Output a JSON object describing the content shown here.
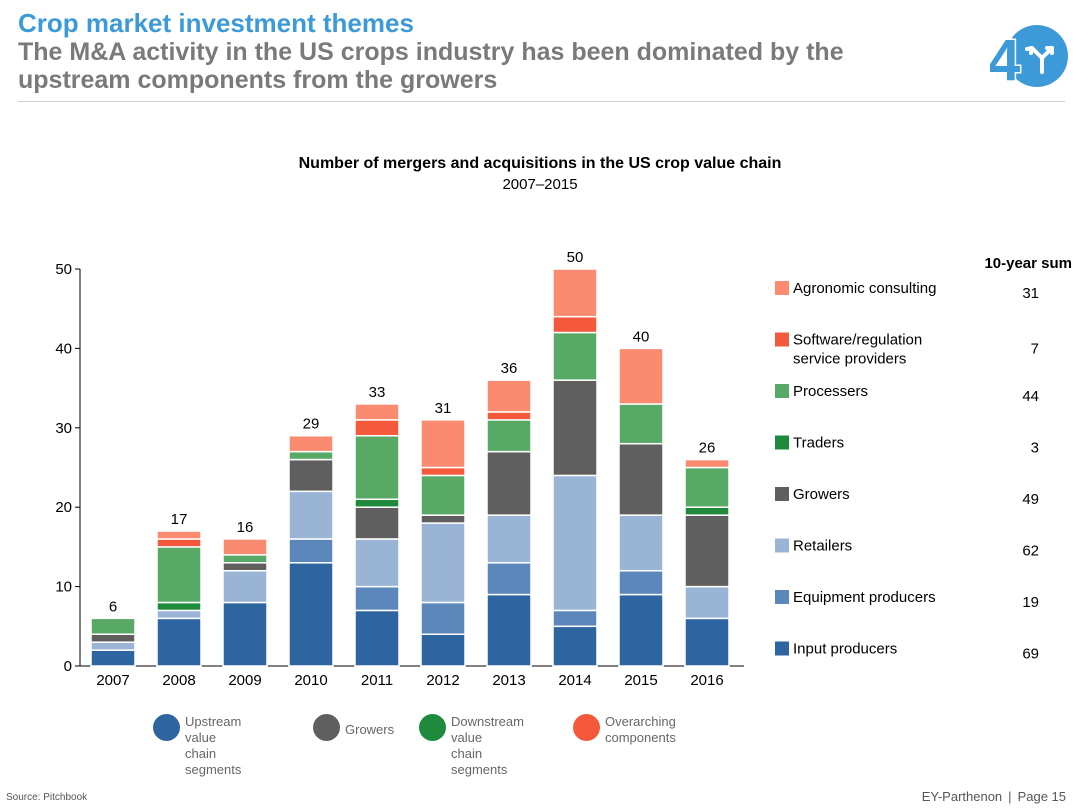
{
  "header": {
    "title": "Crop market investment themes",
    "subtitle": "The M&A activity in the US crops industry has been dominated by the upstream components from the growers"
  },
  "logo": {
    "icon": "four-arrows-logo-icon",
    "color": "#3d9ad8"
  },
  "chart_data": {
    "type": "bar",
    "stacked": true,
    "title": "Number of mergers and acquisitions in the US crop value chain",
    "subtitle": "2007–2015",
    "categories": [
      "2007",
      "2008",
      "2009",
      "2010",
      "2011",
      "2012",
      "2013",
      "2014",
      "2015",
      "2016"
    ],
    "ylim": [
      0,
      50
    ],
    "yticks": [
      0,
      10,
      20,
      30,
      40,
      50
    ],
    "grid": false,
    "legend_position": "right",
    "totals": [
      6,
      17,
      16,
      29,
      33,
      31,
      36,
      50,
      40,
      26
    ],
    "series": [
      {
        "name": "Input producers",
        "color": "#2e64a0",
        "values": [
          2,
          6,
          8,
          13,
          7,
          4,
          9,
          5,
          9,
          6
        ]
      },
      {
        "name": "Equipment producers",
        "color": "#5b87bb",
        "values": [
          0,
          0,
          0,
          3,
          3,
          4,
          4,
          2,
          3,
          0
        ]
      },
      {
        "name": "Retailers",
        "color": "#99b4d4",
        "values": [
          1,
          1,
          4,
          6,
          6,
          10,
          6,
          17,
          7,
          4
        ]
      },
      {
        "name": "Growers",
        "color": "#5f5f5f",
        "values": [
          1,
          0,
          1,
          4,
          4,
          1,
          8,
          12,
          9,
          9
        ]
      },
      {
        "name": "Traders",
        "color": "#1f8a3b",
        "values": [
          0,
          1,
          0,
          0,
          1,
          0,
          0,
          0,
          0,
          1
        ]
      },
      {
        "name": "Processers",
        "color": "#58a866",
        "values": [
          2,
          7,
          1,
          1,
          8,
          5,
          4,
          6,
          5,
          5
        ]
      },
      {
        "name": "Software/regulation service providers",
        "color": "#f3593a",
        "values": [
          0,
          1,
          0,
          0,
          2,
          1,
          1,
          2,
          0,
          0
        ]
      },
      {
        "name": "Agronomic consulting",
        "color": "#fa8a70",
        "values": [
          0,
          1,
          2,
          2,
          2,
          6,
          4,
          6,
          7,
          1
        ]
      }
    ],
    "side_legend_header": "10-year sum",
    "side_legend": [
      {
        "label": "Agronomic consulting",
        "sum": "31",
        "color": "#fa8a70"
      },
      {
        "label": "Software/regulation\nservice providers",
        "sum": "7",
        "color": "#f3593a"
      },
      {
        "label": "Processers",
        "sum": "44",
        "color": "#58a866"
      },
      {
        "label": "Traders",
        "sum": "3",
        "color": "#1f8a3b"
      },
      {
        "label": "Growers",
        "sum": "49",
        "color": "#5f5f5f"
      },
      {
        "label": "Retailers",
        "sum": "62",
        "color": "#99b4d4"
      },
      {
        "label": "Equipment producers",
        "sum": "19",
        "color": "#5b87bb"
      },
      {
        "label": "Input producers",
        "sum": "69",
        "color": "#2e64a0"
      }
    ],
    "bottom_legend": [
      {
        "label": "Upstream value\nchain segments",
        "color": "#2e64a0"
      },
      {
        "label": "Growers",
        "color": "#5f5f5f"
      },
      {
        "label": "Downstream value\nchain segments",
        "color": "#1f8a3b"
      },
      {
        "label": "Overarching\ncomponents",
        "color": "#f3593a"
      }
    ]
  },
  "source": "Source: Pitchbook",
  "footer": {
    "brand": "EY-Parthenon",
    "separator": "|",
    "page": "Page 15"
  }
}
